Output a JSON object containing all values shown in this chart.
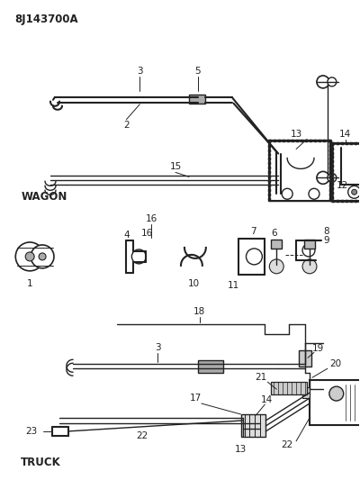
{
  "title": "8J143700A",
  "bg_color": "#ffffff",
  "line_color": "#222222",
  "fig_width": 4.0,
  "fig_height": 5.33,
  "dpi": 100,
  "wagon_label": "WAGON",
  "truck_label": "TRUCK"
}
